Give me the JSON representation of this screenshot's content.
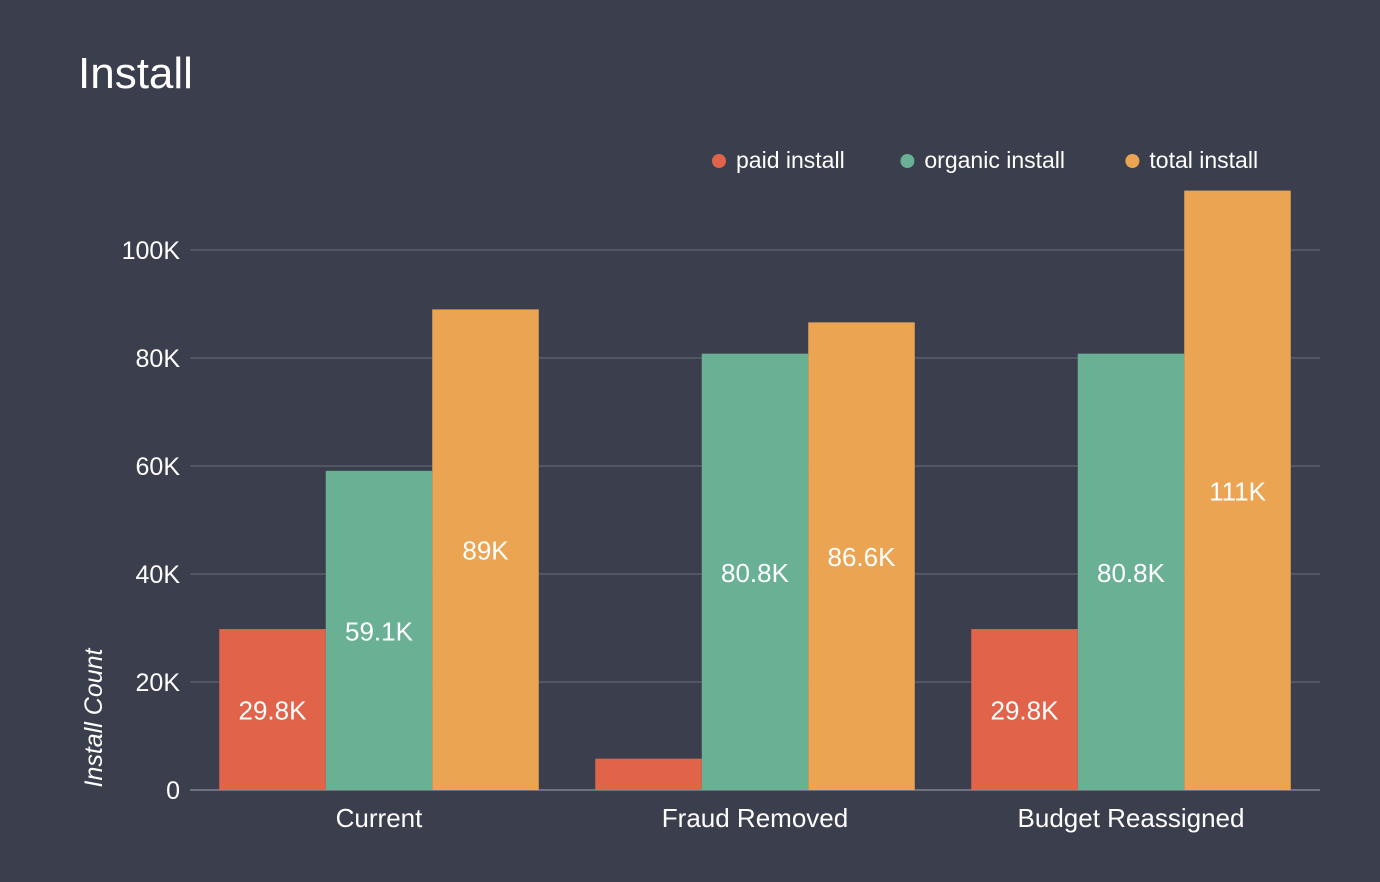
{
  "chart_data": {
    "type": "bar",
    "title": "Install",
    "xlabel": "",
    "ylabel": "Install Count",
    "ylim": [
      0,
      110000
    ],
    "yticks": [
      {
        "value": 0,
        "label": "0"
      },
      {
        "value": 20000,
        "label": "20K"
      },
      {
        "value": 40000,
        "label": "40K"
      },
      {
        "value": 60000,
        "label": "60K"
      },
      {
        "value": 80000,
        "label": "80K"
      },
      {
        "value": 100000,
        "label": "100K"
      }
    ],
    "categories": [
      "Current",
      "Fraud Removed",
      "Budget Reassigned"
    ],
    "series": [
      {
        "name": "paid install",
        "color": "#e0634a",
        "values": [
          29800,
          5800,
          29800
        ],
        "labels": [
          "29.8K",
          "",
          "29.8K"
        ]
      },
      {
        "name": "organic install",
        "color": "#69b094",
        "values": [
          59100,
          80800,
          80800
        ],
        "labels": [
          "59.1K",
          "80.8K",
          "80.8K"
        ]
      },
      {
        "name": "total install",
        "color": "#eba552",
        "values": [
          89000,
          86600,
          111000
        ],
        "labels": [
          "89K",
          "86.6K",
          "111K"
        ]
      }
    ],
    "legend_position": "top-right",
    "grid": true,
    "colors": {
      "background": "#3b3f4d",
      "grid": "#5a5e6b",
      "text": "#ffffff"
    }
  }
}
